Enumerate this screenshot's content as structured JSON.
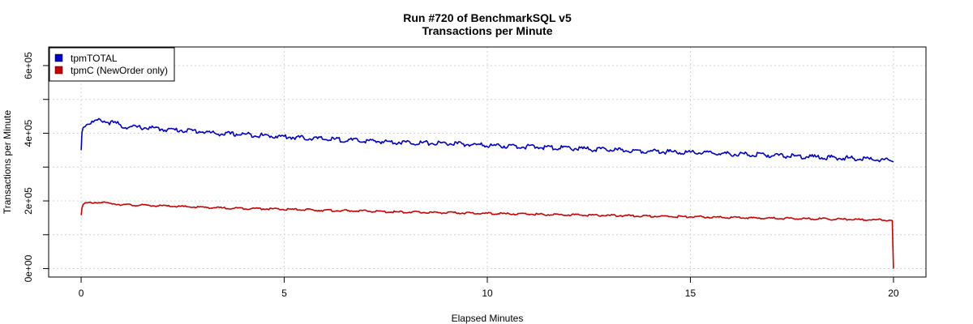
{
  "chart_data": {
    "type": "line",
    "title": "Run #720 of BenchmarkSQL v5",
    "subtitle": "Transactions per Minute",
    "xlabel": "Elapsed Minutes",
    "ylabel": "Transactions per Minute",
    "xlim": [
      -0.8,
      20.8
    ],
    "ylim": [
      -25000,
      655000
    ],
    "x_ticks": [
      0,
      5,
      10,
      15,
      20
    ],
    "x_tick_labels": [
      "0",
      "5",
      "10",
      "15",
      "20"
    ],
    "y_ticks": [
      0,
      100000,
      200000,
      300000,
      400000,
      500000,
      600000
    ],
    "y_tick_labels": [
      "0e+00",
      "",
      "2e+05",
      "",
      "4e+05",
      "",
      "6e+05"
    ],
    "grid": true,
    "legend_position": "top-left",
    "series": [
      {
        "name": "tpmTOTAL",
        "color": "#0000cc",
        "x": [
          0,
          0.02,
          0.05,
          0.1,
          0.2,
          0.3,
          0.4,
          0.5,
          0.6,
          0.7,
          0.8,
          0.9,
          1.0,
          1.25,
          1.5,
          1.75,
          2.0,
          2.25,
          2.5,
          2.75,
          3.0,
          3.25,
          3.5,
          4.0,
          4.5,
          5.0,
          5.5,
          6.0,
          6.5,
          7.0,
          7.5,
          8.0,
          8.5,
          9.0,
          9.5,
          10.0,
          10.5,
          11.0,
          11.5,
          12.0,
          12.5,
          13.0,
          13.5,
          14.0,
          14.5,
          15.0,
          15.5,
          16.0,
          16.5,
          17.0,
          17.5,
          18.0,
          18.5,
          19.0,
          19.5,
          19.9,
          19.97,
          20.0
        ],
        "y": [
          350000,
          405000,
          420000,
          425000,
          430000,
          433000,
          436000,
          440000,
          434000,
          432000,
          430000,
          428000,
          420000,
          418000,
          417000,
          415000,
          412000,
          410000,
          409000,
          407000,
          405000,
          400000,
          398000,
          397000,
          393000,
          390000,
          386000,
          383000,
          380000,
          377000,
          375000,
          373000,
          371000,
          370000,
          367000,
          364000,
          362000,
          360000,
          358000,
          356000,
          353000,
          351000,
          349000,
          347000,
          345000,
          343000,
          341000,
          339000,
          337000,
          335000,
          332000,
          330000,
          328000,
          326000,
          323000,
          320000,
          317000,
          315000
        ]
      },
      {
        "name": "tpmC (NewOrder only)",
        "color": "#cc0000",
        "x": [
          0,
          0.02,
          0.05,
          0.1,
          0.2,
          0.3,
          0.4,
          0.5,
          0.6,
          0.7,
          0.8,
          0.9,
          1.0,
          1.25,
          1.5,
          1.75,
          2.0,
          2.25,
          2.5,
          2.75,
          3.0,
          3.25,
          3.5,
          4.0,
          4.5,
          5.0,
          5.5,
          6.0,
          6.5,
          7.0,
          7.5,
          8.0,
          8.5,
          9.0,
          9.5,
          10.0,
          10.5,
          11.0,
          11.5,
          12.0,
          12.5,
          13.0,
          13.5,
          14.0,
          14.5,
          15.0,
          15.5,
          16.0,
          16.5,
          17.0,
          17.5,
          18.0,
          18.5,
          19.0,
          19.5,
          19.9,
          19.97,
          20.0
        ],
        "y": [
          158000,
          182000,
          189000,
          192000,
          194000,
          195000,
          196000,
          195000,
          194000,
          193000,
          192000,
          191000,
          189000,
          188000,
          187000,
          186000,
          185000,
          184000,
          183000,
          182000,
          181000,
          180000,
          179000,
          178000,
          177000,
          175000,
          174000,
          172000,
          171000,
          170000,
          168000,
          167000,
          166000,
          165000,
          164000,
          163000,
          162000,
          161000,
          160000,
          159000,
          158000,
          157000,
          156000,
          155000,
          154000,
          153000,
          152000,
          151000,
          150000,
          149000,
          148000,
          147000,
          146000,
          145000,
          144000,
          143000,
          142000,
          0
        ]
      }
    ]
  }
}
